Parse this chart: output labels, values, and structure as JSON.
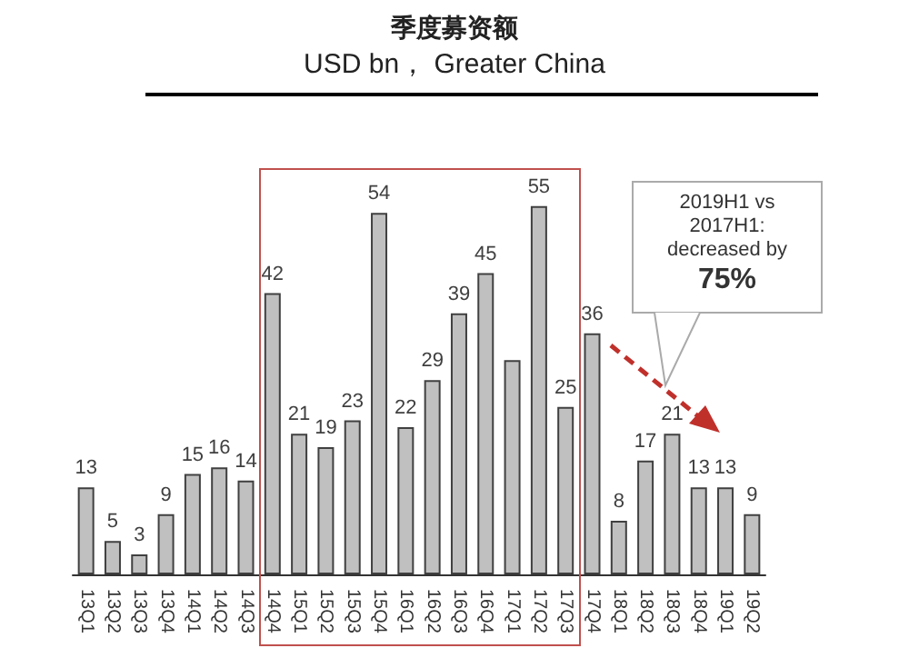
{
  "chart_data": {
    "type": "bar",
    "title": "季度募资额",
    "subtitle": "USD bn， Greater China",
    "categories": [
      "13Q1",
      "13Q2",
      "13Q3",
      "13Q4",
      "14Q1",
      "14Q2",
      "14Q3",
      "14Q4",
      "15Q1",
      "15Q2",
      "15Q3",
      "15Q4",
      "16Q1",
      "16Q2",
      "16Q3",
      "16Q4",
      "17Q1",
      "17Q2",
      "17Q3",
      "17Q4",
      "18Q1",
      "18Q2",
      "18Q3",
      "18Q4",
      "19Q1",
      "19Q2"
    ],
    "values": [
      13,
      5,
      3,
      9,
      15,
      16,
      14,
      42,
      21,
      19,
      23,
      54,
      22,
      29,
      39,
      45,
      32,
      55,
      25,
      36,
      8,
      17,
      21,
      13,
      13,
      9
    ],
    "value_labels": [
      "13",
      "5",
      "3",
      "9",
      "15",
      "16",
      "14",
      "42",
      "21",
      "19",
      "23",
      "54",
      "22",
      "29",
      "39",
      "45",
      null,
      "55",
      "25",
      "36",
      "8",
      "17",
      "21",
      "13",
      "13",
      "9"
    ],
    "color": "#c0c0c0",
    "grid": false,
    "annotations": [
      "2019H1 vs\n2017H1:\ndecreased by\n75%"
    ]
  }
}
